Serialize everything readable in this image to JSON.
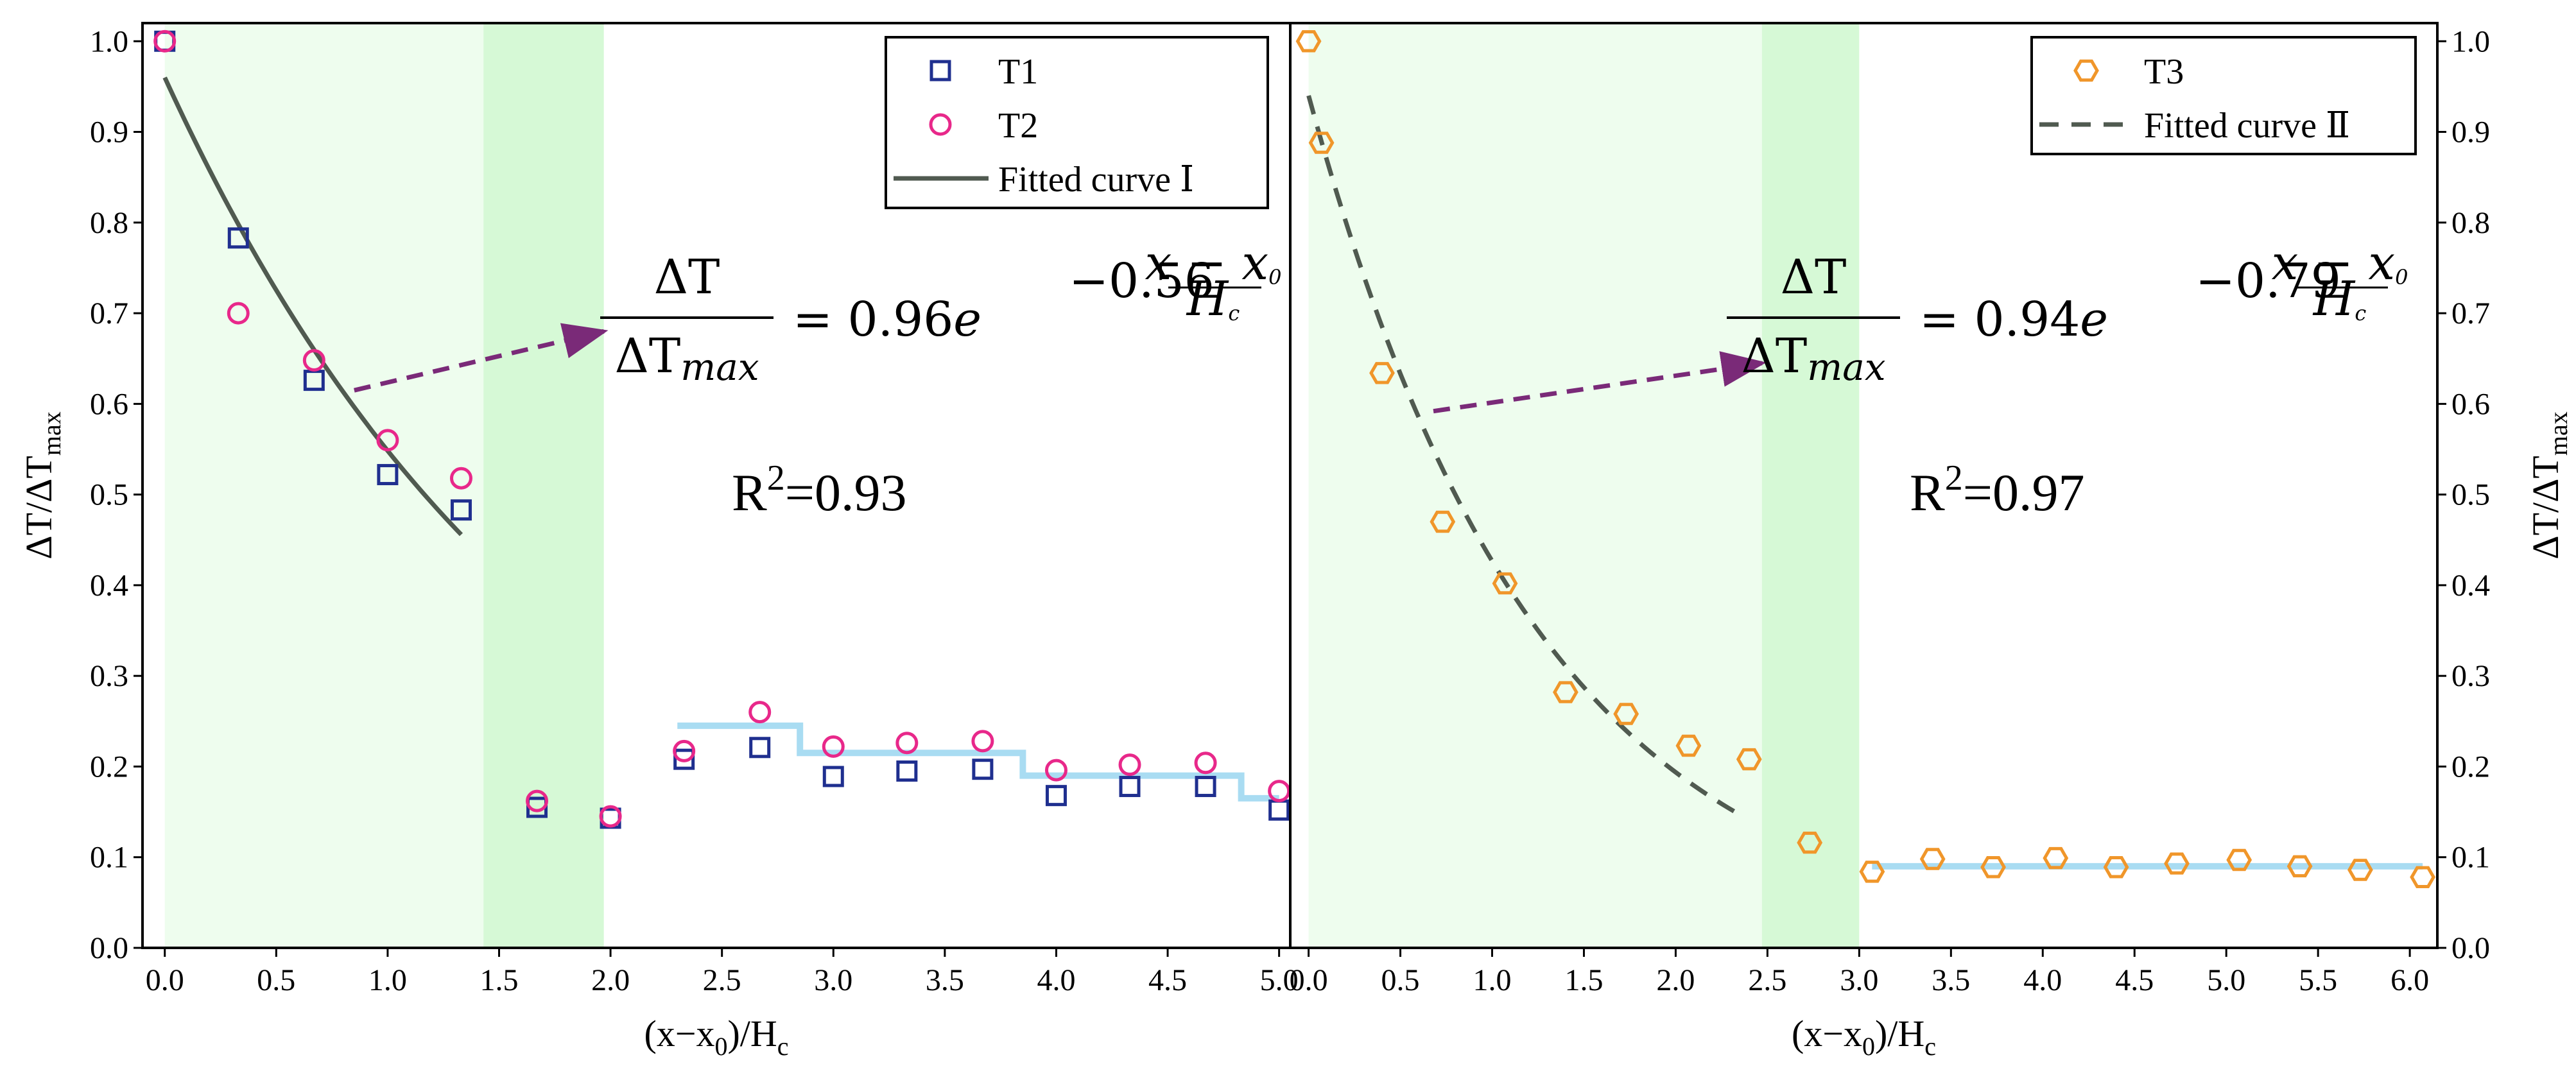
{
  "chart_data": [
    {
      "type": "scatter",
      "panel": "left",
      "xlabel_main": "(x−x",
      "xlabel_sub0": "0",
      "xlabel_mid": ")/H",
      "xlabel_sub1": "c",
      "ylabel_main": "ΔT/ΔT",
      "ylabel_sub": "max",
      "xlim": [
        -0.1,
        5.05
      ],
      "ylim": [
        0.0,
        1.02
      ],
      "xticks": [
        "0.0",
        "0.5",
        "1.0",
        "1.5",
        "2.0",
        "2.5",
        "3.0",
        "3.5",
        "4.0",
        "4.5",
        "5.0"
      ],
      "yticks": [
        "0.0",
        "0.1",
        "0.2",
        "0.3",
        "0.4",
        "0.5",
        "0.6",
        "0.7",
        "0.8",
        "0.9",
        "1.0"
      ],
      "shaded_regions": [
        {
          "x": [
            0.0,
            1.43
          ],
          "color": "#eefdee"
        },
        {
          "x": [
            1.43,
            1.97
          ],
          "color": "#d6f9d6"
        }
      ],
      "series": [
        {
          "name": "T1",
          "marker": "square",
          "color": "#1f2f8f",
          "x": [
            0.0,
            0.33,
            0.67,
            1.0,
            1.33,
            1.67,
            2.0,
            2.33,
            2.67,
            3.0,
            3.33,
            3.67,
            4.0,
            4.33,
            4.67,
            5.0
          ],
          "y": [
            1.0,
            0.783,
            0.626,
            0.522,
            0.483,
            0.155,
            0.143,
            0.208,
            0.221,
            0.189,
            0.195,
            0.197,
            0.168,
            0.178,
            0.178,
            0.152
          ]
        },
        {
          "name": "T2",
          "marker": "circle",
          "color": "#e8288a",
          "x": [
            0.0,
            0.33,
            0.67,
            1.0,
            1.33,
            1.67,
            2.0,
            2.33,
            2.67,
            3.0,
            3.33,
            3.67,
            4.0,
            4.33,
            4.67,
            5.0
          ],
          "y": [
            1.0,
            0.7,
            0.648,
            0.56,
            0.518,
            0.162,
            0.145,
            0.217,
            0.26,
            0.222,
            0.226,
            0.228,
            0.196,
            0.202,
            0.204,
            0.173
          ]
        }
      ],
      "fit": {
        "name": "Fitted curve Ⅰ",
        "style": "solid",
        "color": "#505a50",
        "a": 0.96,
        "b": 0.56,
        "x_range": [
          0.0,
          1.33
        ]
      },
      "step_line": {
        "color": "#a9dcf2",
        "segments": [
          {
            "x": [
              2.3,
              2.85
            ],
            "y": 0.245
          },
          {
            "x": [
              2.85,
              3.85
            ],
            "y": 0.215
          },
          {
            "x": [
              3.85,
              4.83
            ],
            "y": 0.19
          },
          {
            "x": [
              4.83,
              5.0
            ],
            "y": 0.165
          }
        ]
      },
      "legend": [
        {
          "label": "T1",
          "symbol": "square"
        },
        {
          "label": "T2",
          "symbol": "circle"
        },
        {
          "label": "Fitted curve Ⅰ",
          "symbol": "solid-line"
        }
      ],
      "arrow": {
        "from": [
          0.85,
          0.615
        ],
        "to": [
          1.97,
          0.68
        ],
        "color": "#7a2a78"
      },
      "equation": {
        "numerator": "ΔT",
        "denominator": "ΔT",
        "denominator_sub": "max",
        "rhs_prefix": "= 0.96",
        "rhs_e": "e",
        "exp_coef": "−0.56",
        "exp_num": "x − x",
        "exp_num_sub": "0",
        "exp_den": "H",
        "exp_den_sub": "c"
      },
      "r2": {
        "label": "R",
        "sup": "2",
        "value": "=0.93"
      }
    },
    {
      "type": "scatter",
      "panel": "right",
      "xlabel_main": "(x−x",
      "xlabel_sub0": "0",
      "xlabel_mid": ")/H",
      "xlabel_sub1": "c",
      "ylabel_main": "ΔT/ΔT",
      "ylabel_sub": "max",
      "xlim": [
        -0.1,
        6.15
      ],
      "ylim": [
        0.0,
        1.02
      ],
      "xticks": [
        "0.0",
        "0.5",
        "1.0",
        "1.5",
        "2.0",
        "2.5",
        "3.0",
        "3.5",
        "4.0",
        "4.5",
        "5.0",
        "5.5",
        "6.0"
      ],
      "yticks": [
        "0.0",
        "0.1",
        "0.2",
        "0.3",
        "0.4",
        "0.5",
        "0.6",
        "0.7",
        "0.8",
        "0.9",
        "1.0"
      ],
      "shaded_regions": [
        {
          "x": [
            0.0,
            2.47
          ],
          "color": "#eefdee"
        },
        {
          "x": [
            2.47,
            3.0
          ],
          "color": "#d6f9d6"
        }
      ],
      "series": [
        {
          "name": "T3",
          "marker": "hexagon",
          "color": "#f0962a",
          "x": [
            0.0,
            0.07,
            0.4,
            0.73,
            1.07,
            1.4,
            1.73,
            2.07,
            2.4,
            2.73,
            3.07,
            3.4,
            3.73,
            4.07,
            4.4,
            4.73,
            5.07,
            5.4,
            5.73,
            6.07
          ],
          "y": [
            1.0,
            0.888,
            0.634,
            0.47,
            0.402,
            0.282,
            0.258,
            0.223,
            0.208,
            0.116,
            0.084,
            0.098,
            0.089,
            0.099,
            0.089,
            0.093,
            0.097,
            0.09,
            0.086,
            0.078
          ]
        }
      ],
      "fit": {
        "name": "Fitted curve Ⅱ",
        "style": "dashed",
        "color": "#505a50",
        "a": 0.94,
        "b": 0.79,
        "x_range": [
          0.0,
          2.33
        ]
      },
      "step_line": {
        "color": "#a9dcf2",
        "segments": [
          {
            "x": [
              3.07,
              6.07
            ],
            "y": 0.09
          }
        ]
      },
      "legend": [
        {
          "label": "T3",
          "symbol": "hexagon"
        },
        {
          "label": "Fitted curve Ⅱ",
          "symbol": "dashed-line"
        }
      ],
      "arrow": {
        "from": [
          0.68,
          0.592
        ],
        "to": [
          2.47,
          0.645
        ],
        "color": "#7a2a78"
      },
      "equation": {
        "numerator": "ΔT",
        "denominator": "ΔT",
        "denominator_sub": "max",
        "rhs_prefix": "= 0.94",
        "rhs_e": "e",
        "exp_coef": "−0.79",
        "exp_num": "x − x",
        "exp_num_sub": "0",
        "exp_den": "H",
        "exp_den_sub": "c"
      },
      "r2": {
        "label": "R",
        "sup": "2",
        "value": "=0.97"
      }
    }
  ]
}
